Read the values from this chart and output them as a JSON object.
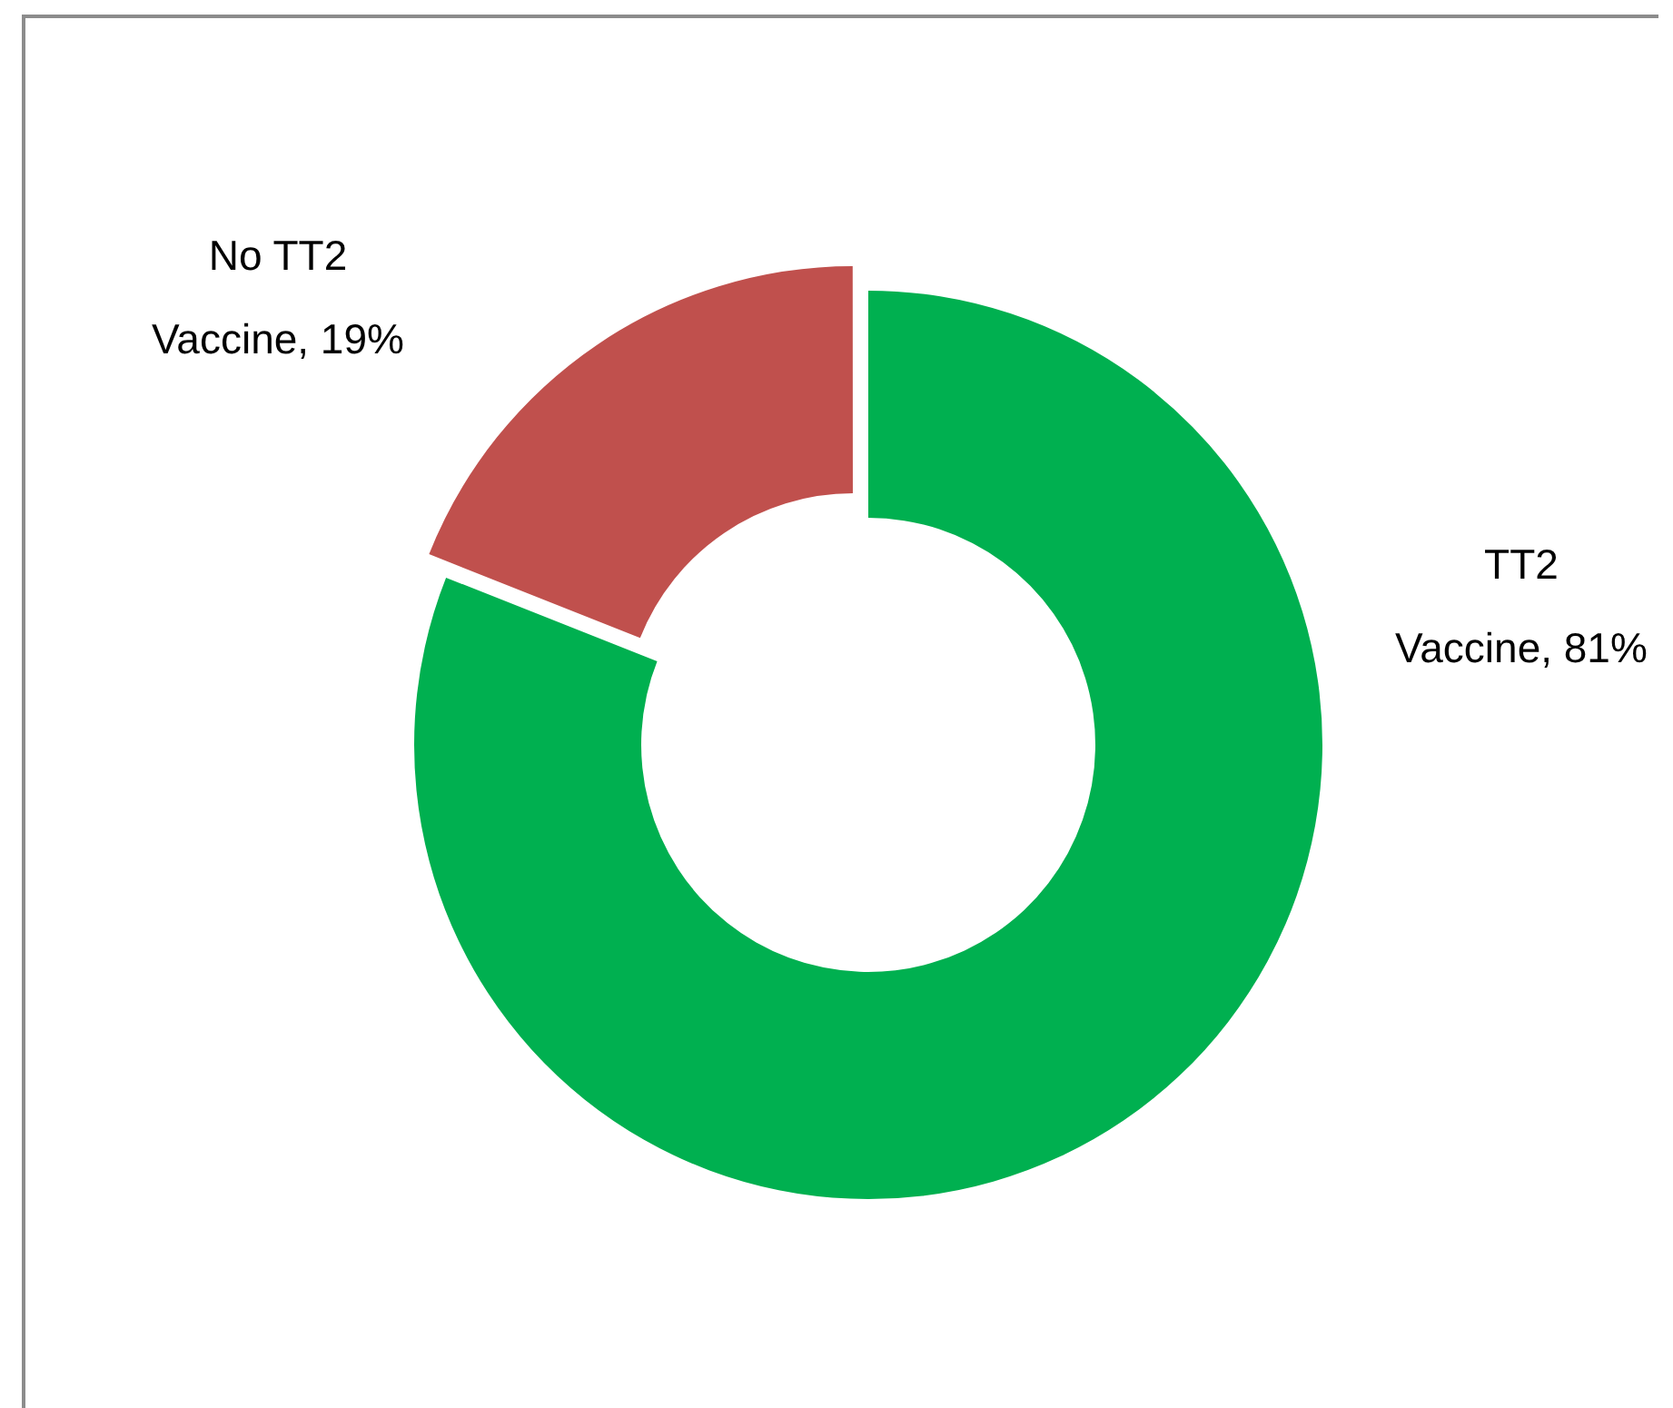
{
  "chart_data": {
    "type": "donut",
    "categories": [
      "TT2 Vaccine",
      "No TT2 Vaccine"
    ],
    "values": [
      81,
      19
    ],
    "colors": [
      "#00b050",
      "#c0504d"
    ],
    "value_labels": [
      "81%",
      "19%"
    ],
    "legend": false
  }
}
